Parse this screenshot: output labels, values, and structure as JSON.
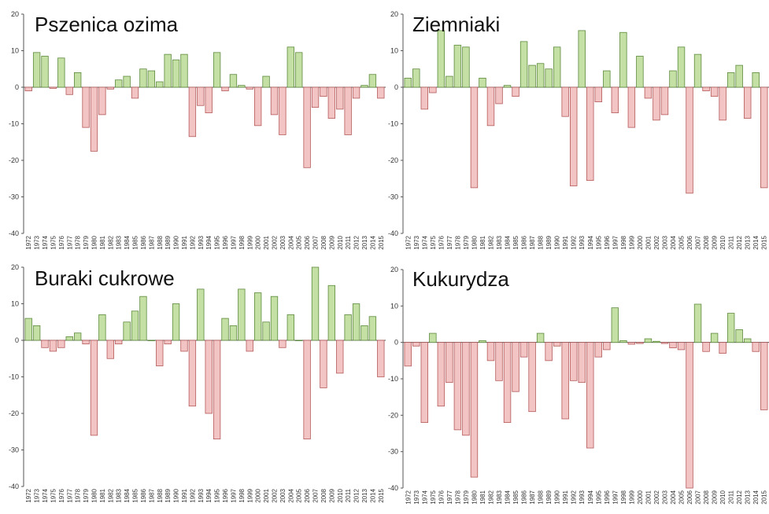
{
  "colors": {
    "positive_fill": "#c5e0a5",
    "positive_stroke": "#5d8a3c",
    "negative_fill": "#f3c4c4",
    "negative_stroke": "#b55a5a",
    "axis": "#555555"
  },
  "chart_data": [
    {
      "type": "bar",
      "title": "Pszenica ozima",
      "xlabel": "",
      "ylabel": "",
      "ylim": [
        -40,
        20
      ],
      "yticks": [
        "20",
        "10",
        "0",
        "-10",
        "-20",
        "-30",
        "-40"
      ],
      "categories": [
        "1972",
        "1973",
        "1974",
        "1975",
        "1976",
        "1977",
        "1978",
        "1979",
        "1980",
        "1981",
        "1982",
        "1983",
        "1984",
        "1985",
        "1986",
        "1987",
        "1988",
        "1989",
        "1990",
        "1991",
        "1992",
        "1993",
        "1994",
        "1995",
        "1996",
        "1997",
        "1998",
        "1999",
        "2000",
        "2001",
        "2002",
        "2003",
        "2004",
        "2005",
        "2006",
        "2007",
        "2008",
        "2009",
        "2010",
        "2011",
        "2012",
        "2013",
        "2014",
        "2015"
      ],
      "values": [
        -1,
        9.5,
        8.5,
        -0.3,
        8,
        -2,
        4,
        -11,
        -17.5,
        -7.5,
        -0.5,
        2,
        3,
        -3,
        5,
        4.5,
        1.5,
        9,
        7.5,
        9,
        -13.5,
        -5,
        -7,
        9.5,
        -1,
        3.5,
        0.5,
        -0.5,
        -10.5,
        3,
        -7.5,
        -13,
        11,
        9.5,
        -22,
        -5.5,
        -2.5,
        -8.5,
        -6,
        -13,
        -3,
        0.5,
        3.5,
        -3
      ]
    },
    {
      "type": "bar",
      "title": "Ziemniaki",
      "xlabel": "",
      "ylabel": "",
      "ylim": [
        -40,
        20
      ],
      "yticks": [
        "20",
        "10",
        "0",
        "-10",
        "-20",
        "-30",
        "-40"
      ],
      "categories": [
        "1972",
        "1973",
        "1974",
        "1975",
        "1976",
        "1977",
        "1978",
        "1979",
        "1980",
        "1981",
        "1982",
        "1983",
        "1984",
        "1985",
        "1986",
        "1987",
        "1988",
        "1989",
        "1990",
        "1991",
        "1992",
        "1993",
        "1994",
        "1995",
        "1996",
        "1997",
        "1998",
        "1999",
        "2000",
        "2001",
        "2002",
        "2003",
        "2004",
        "2005",
        "2006",
        "2007",
        "2008",
        "2009",
        "2010",
        "2011",
        "2012",
        "2013",
        "2014",
        "2015"
      ],
      "values": [
        2.5,
        5,
        -6,
        -1.5,
        15.5,
        3,
        11.5,
        11,
        -27.5,
        2.5,
        -10.5,
        -4.5,
        0.5,
        -2.5,
        12.5,
        6,
        6.5,
        5,
        11,
        -8,
        -27,
        15.5,
        -25.5,
        -4,
        4.5,
        -7,
        15,
        -11,
        8.5,
        -3,
        -9,
        -7.5,
        4.5,
        11,
        -29,
        9,
        -1,
        -2.5,
        -9,
        4,
        6,
        -8.5,
        4,
        -27.5
      ]
    },
    {
      "type": "bar",
      "title": "Buraki cukrowe",
      "xlabel": "",
      "ylabel": "",
      "ylim": [
        -40,
        20
      ],
      "yticks": [
        "20",
        "10",
        "0",
        "-10",
        "-20",
        "-30",
        "-40"
      ],
      "categories": [
        "1972",
        "1973",
        "1974",
        "1975",
        "1976",
        "1977",
        "1978",
        "1979",
        "1980",
        "1981",
        "1982",
        "1983",
        "1984",
        "1985",
        "1986",
        "1987",
        "1988",
        "1989",
        "1990",
        "1991",
        "1992",
        "1993",
        "1994",
        "1995",
        "1996",
        "1997",
        "1998",
        "1999",
        "2000",
        "2001",
        "2002",
        "2003",
        "2004",
        "2005",
        "2006",
        "2007",
        "2008",
        "2009",
        "2010",
        "2011",
        "2012",
        "2013",
        "2014",
        "2015"
      ],
      "values": [
        6,
        4,
        -2,
        -3,
        -2,
        1,
        2,
        -1,
        -26,
        7,
        -5,
        -1,
        5,
        8,
        12,
        0,
        -7,
        -1,
        10,
        -3,
        -18,
        14,
        -20,
        -27,
        6,
        4,
        14,
        -3,
        13,
        5,
        12,
        -2,
        7,
        0,
        -27,
        20,
        -13,
        15,
        -9,
        7,
        10,
        4,
        6.5,
        -10
      ]
    },
    {
      "type": "bar",
      "title": "Kukurydza",
      "xlabel": "",
      "ylabel": "",
      "ylim": [
        -40,
        20
      ],
      "yticks": [
        "20",
        "10",
        "0",
        "-10",
        "-20",
        "-30",
        "-40"
      ],
      "categories": [
        "1972",
        "1973",
        "1974",
        "1975",
        "1976",
        "1977",
        "1978",
        "1979",
        "1980",
        "1981",
        "1982",
        "1983",
        "1984",
        "1985",
        "1986",
        "1987",
        "1988",
        "1989",
        "1990",
        "1991",
        "1992",
        "1993",
        "1994",
        "1995",
        "1996",
        "1997",
        "1998",
        "1999",
        "2000",
        "2001",
        "2002",
        "2003",
        "2004",
        "2005",
        "2006",
        "2007",
        "2008",
        "2009",
        "2010",
        "2011",
        "2012",
        "2013",
        "2014",
        "2015"
      ],
      "values": [
        -6.5,
        -1,
        -22,
        2.5,
        -17.5,
        -11,
        -24,
        -25.5,
        -37,
        0.5,
        -5,
        -10.5,
        -22,
        -13.5,
        -4,
        -19,
        2.5,
        -5,
        -1,
        -21,
        -10.5,
        -11,
        -29,
        -4,
        -2,
        9.5,
        0.5,
        -0.5,
        -0.3,
        1,
        0.3,
        -0.3,
        -1.5,
        -2,
        -40,
        10.5,
        -2.5,
        2.5,
        -3,
        8,
        3.5,
        1,
        -2.5,
        -18.5
      ]
    }
  ]
}
